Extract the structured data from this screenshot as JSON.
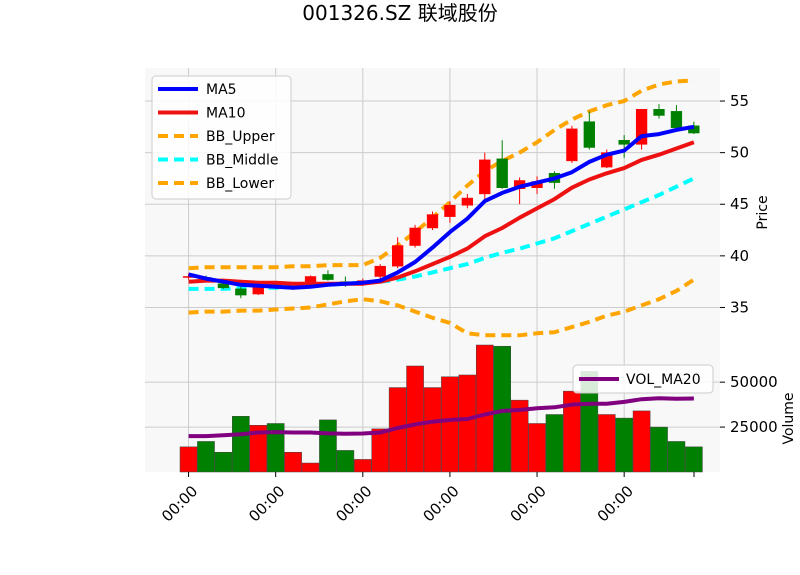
{
  "chart_data": {
    "type": "candlestick",
    "title": "001326.SZ 联域股份",
    "x_tick_labels": [
      "00:00",
      "00:00",
      "00:00",
      "00:00",
      "00:00",
      "00:00"
    ],
    "x_tick_indices": [
      0,
      5,
      10,
      15,
      20,
      25
    ],
    "x_range": [
      -2.5,
      30.5
    ],
    "price_axis": {
      "label": "Price",
      "ylim": [
        30.2,
        58.2
      ],
      "ticks": [
        35,
        40,
        45,
        50,
        55
      ],
      "tick_labels": [
        "35",
        "40",
        "45",
        "50",
        "55"
      ],
      "position": "right",
      "grid": true
    },
    "volume_axis": {
      "label": "Volume",
      "ylim": [
        0,
        64000
      ],
      "ticks": [
        25000,
        50000
      ],
      "tick_labels": [
        "25000",
        "50000"
      ],
      "position": "right",
      "grid": true
    },
    "colors": {
      "up": "#ff0000",
      "down": "#008000",
      "ma5": "#0000ff",
      "ma10": "#ee1111",
      "bb_band": "#ffa500",
      "bb_mid": "#00ffff",
      "vol_ma20": "#800080",
      "plot_bg": "#f8f8f8",
      "grid": "#cccccc"
    },
    "candles": [
      {
        "o": 38.0,
        "h": 38.3,
        "l": 37.7,
        "c": 38.0
      },
      {
        "o": 37.9,
        "h": 38.1,
        "l": 37.4,
        "c": 37.5
      },
      {
        "o": 37.3,
        "h": 37.5,
        "l": 36.8,
        "c": 36.9
      },
      {
        "o": 36.8,
        "h": 37.0,
        "l": 35.9,
        "c": 36.2
      },
      {
        "o": 36.3,
        "h": 37.1,
        "l": 36.2,
        "c": 37.0
      },
      {
        "o": 37.2,
        "h": 37.4,
        "l": 36.8,
        "c": 36.9
      },
      {
        "o": 36.9,
        "h": 37.1,
        "l": 36.7,
        "c": 37.0
      },
      {
        "o": 37.5,
        "h": 38.1,
        "l": 37.4,
        "c": 38.0
      },
      {
        "o": 38.2,
        "h": 38.6,
        "l": 37.6,
        "c": 37.7
      },
      {
        "o": 37.5,
        "h": 38.0,
        "l": 37.0,
        "c": 37.3
      },
      {
        "o": 37.3,
        "h": 37.8,
        "l": 37.1,
        "c": 37.6
      },
      {
        "o": 38.0,
        "h": 39.2,
        "l": 37.6,
        "c": 39.0
      },
      {
        "o": 39.0,
        "h": 41.8,
        "l": 38.8,
        "c": 41.0
      },
      {
        "o": 41.0,
        "h": 43.0,
        "l": 40.8,
        "c": 42.7
      },
      {
        "o": 42.7,
        "h": 44.3,
        "l": 42.5,
        "c": 44.0
      },
      {
        "o": 43.8,
        "h": 45.3,
        "l": 43.2,
        "c": 44.9
      },
      {
        "o": 44.9,
        "h": 46.0,
        "l": 44.6,
        "c": 45.6
      },
      {
        "o": 46.0,
        "h": 50.0,
        "l": 45.5,
        "c": 49.3
      },
      {
        "o": 49.4,
        "h": 51.2,
        "l": 46.5,
        "c": 46.6
      },
      {
        "o": 46.5,
        "h": 47.6,
        "l": 45.0,
        "c": 47.3
      },
      {
        "o": 46.6,
        "h": 47.7,
        "l": 46.0,
        "c": 47.2
      },
      {
        "o": 48.0,
        "h": 48.2,
        "l": 46.5,
        "c": 47.1
      },
      {
        "o": 49.2,
        "h": 52.6,
        "l": 49.0,
        "c": 52.3
      },
      {
        "o": 53.0,
        "h": 54.0,
        "l": 50.3,
        "c": 50.5
      },
      {
        "o": 48.6,
        "h": 50.3,
        "l": 48.5,
        "c": 50.0
      },
      {
        "o": 51.2,
        "h": 51.7,
        "l": 49.5,
        "c": 50.8
      },
      {
        "o": 50.8,
        "h": 54.2,
        "l": 50.3,
        "c": 54.2
      },
      {
        "o": 54.2,
        "h": 54.7,
        "l": 53.3,
        "c": 53.6
      },
      {
        "o": 54.0,
        "h": 54.6,
        "l": 52.3,
        "c": 52.4
      },
      {
        "o": 52.6,
        "h": 53.0,
        "l": 51.8,
        "c": 51.9
      }
    ],
    "ma5": [
      38.2,
      37.8,
      37.5,
      37.2,
      37.1,
      37.0,
      36.9,
      37.0,
      37.2,
      37.3,
      37.4,
      37.6,
      38.4,
      39.4,
      40.8,
      42.3,
      43.6,
      45.3,
      46.1,
      46.7,
      47.1,
      47.5,
      48.1,
      49.1,
      49.8,
      50.2,
      51.6,
      51.8,
      52.2,
      52.5
    ],
    "ma10": [
      37.5,
      37.6,
      37.6,
      37.5,
      37.4,
      37.4,
      37.3,
      37.3,
      37.3,
      37.3,
      37.3,
      37.5,
      37.9,
      38.5,
      39.2,
      39.9,
      40.7,
      41.9,
      42.7,
      43.7,
      44.6,
      45.5,
      46.6,
      47.4,
      48.0,
      48.5,
      49.3,
      49.8,
      50.4,
      51.0
    ],
    "bb_upper": [
      38.8,
      38.9,
      38.9,
      38.9,
      38.9,
      38.9,
      39.0,
      39.0,
      39.1,
      39.1,
      39.1,
      39.8,
      41.0,
      42.3,
      43.7,
      45.2,
      46.8,
      48.2,
      49.2,
      50.0,
      51.0,
      52.2,
      53.2,
      54.0,
      54.6,
      55.0,
      56.0,
      56.6,
      56.9,
      57.0
    ],
    "bb_middle": [
      36.8,
      36.8,
      36.8,
      36.9,
      36.9,
      36.9,
      37.0,
      37.1,
      37.2,
      37.3,
      37.4,
      37.5,
      37.7,
      38.0,
      38.4,
      38.8,
      39.2,
      39.8,
      40.3,
      40.7,
      41.2,
      41.7,
      42.4,
      43.1,
      43.8,
      44.5,
      45.2,
      45.9,
      46.7,
      47.5
    ],
    "bb_lower": [
      34.5,
      34.6,
      34.6,
      34.7,
      34.7,
      34.8,
      34.9,
      35.0,
      35.3,
      35.6,
      35.8,
      35.6,
      35.2,
      34.6,
      34.0,
      33.5,
      32.5,
      32.3,
      32.3,
      32.3,
      32.5,
      32.6,
      33.1,
      33.6,
      34.2,
      34.6,
      35.2,
      35.8,
      36.6,
      37.7
    ],
    "volume": [
      14000,
      17000,
      11000,
      31000,
      26000,
      27000,
      11000,
      5000,
      29000,
      12000,
      7000,
      24000,
      47000,
      59000,
      47000,
      53000,
      54000,
      92000,
      70000,
      40000,
      27000,
      32000,
      45000,
      56000,
      32000,
      30000,
      34000,
      25000,
      17000,
      14000
    ],
    "vol_ma20": [
      20000,
      20000,
      20500,
      21000,
      22000,
      22200,
      22000,
      22000,
      21500,
      21300,
      21400,
      22000,
      24500,
      26500,
      28000,
      29000,
      29500,
      32000,
      34000,
      34500,
      35500,
      36000,
      37500,
      38000,
      38000,
      39000,
      40500,
      41000,
      40800,
      40900
    ],
    "legend_price": {
      "placement": "upper-left",
      "entries": [
        {
          "label": "MA5",
          "color": "#0000ff",
          "style": "solid"
        },
        {
          "label": "MA10",
          "color": "#ee1111",
          "style": "solid"
        },
        {
          "label": "BB_Upper",
          "color": "#ffa500",
          "style": "dashed"
        },
        {
          "label": "BB_Middle",
          "color": "#00ffff",
          "style": "dashed"
        },
        {
          "label": "BB_Lower",
          "color": "#ffa500",
          "style": "dashed"
        }
      ]
    },
    "legend_volume": {
      "placement": "upper-right",
      "entries": [
        {
          "label": "VOL_MA20",
          "color": "#800080",
          "style": "solid"
        }
      ]
    }
  }
}
